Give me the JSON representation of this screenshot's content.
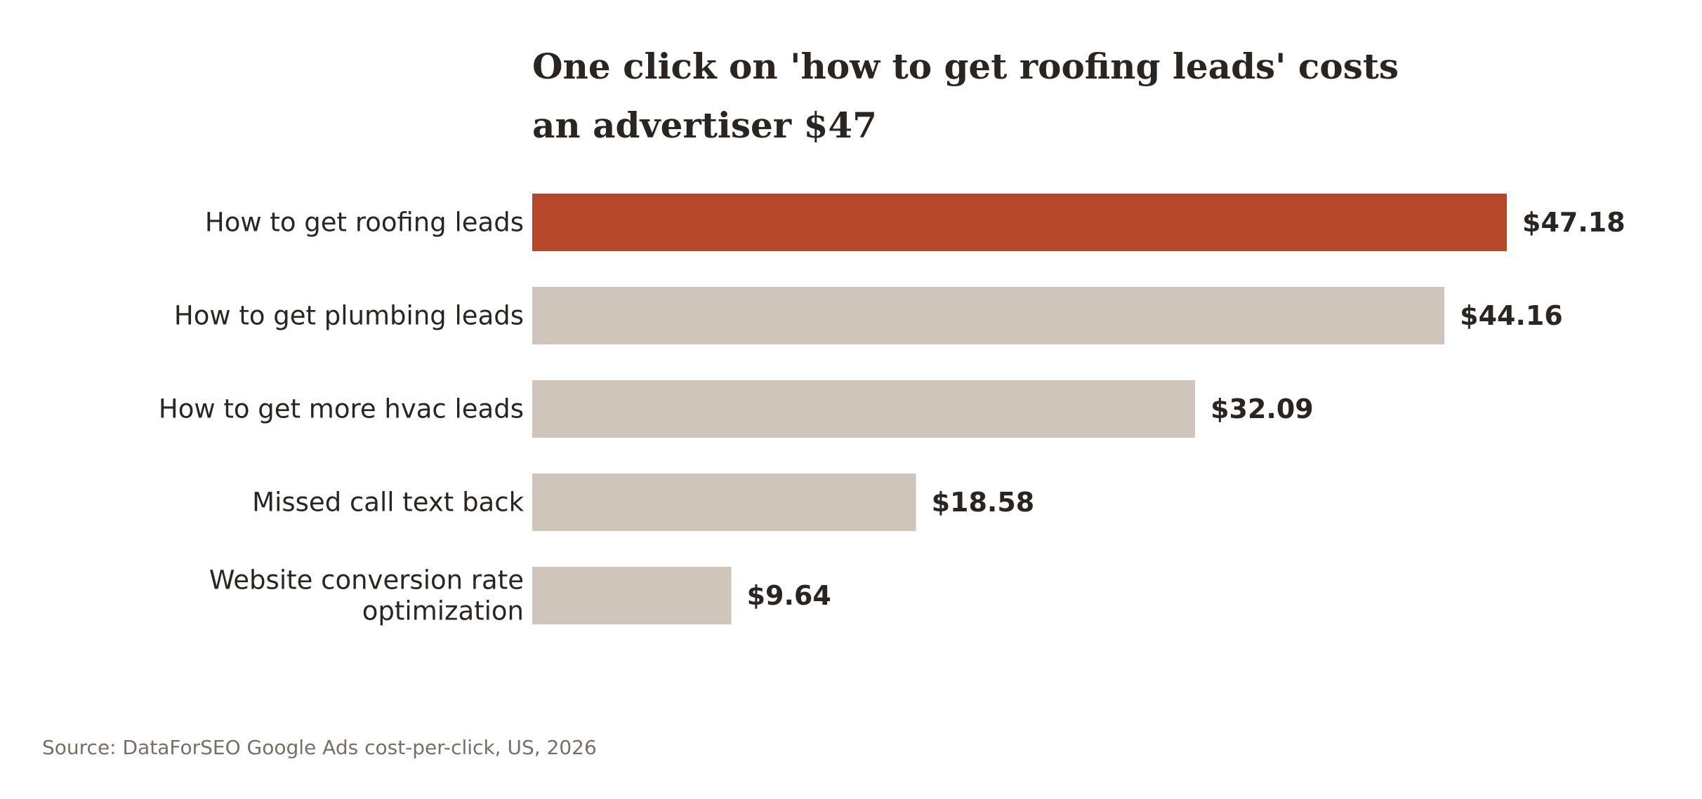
{
  "chart_data": {
    "type": "bar",
    "orientation": "horizontal",
    "title": "One click on 'how to get roofing leads' costs an advertiser $47",
    "title_lines": [
      "One click on 'how to get roofing leads' costs",
      "an advertiser $47"
    ],
    "categories": [
      "How to get roofing leads",
      "How to get plumbing leads",
      "How to get more hvac leads",
      "Missed call text back",
      "Website conversion rate optimization"
    ],
    "category_lines": [
      [
        "How to get roofing leads"
      ],
      [
        "How to get plumbing leads"
      ],
      [
        "How to get more hvac leads"
      ],
      [
        "Missed call text back"
      ],
      [
        "Website conversion rate",
        "optimization"
      ]
    ],
    "values": [
      47.18,
      44.16,
      32.09,
      18.58,
      9.64
    ],
    "value_labels": [
      "$47.18",
      "$44.16",
      "$32.09",
      "$18.58",
      "$9.64"
    ],
    "highlight_index": 0,
    "xlim": [
      0,
      47.18
    ],
    "xlabel": "",
    "ylabel": "",
    "grid": false,
    "legend": "none",
    "colors": {
      "highlight": "#b5482a",
      "default": "#cfc5bb",
      "text": "#2a2520",
      "source": "#7a6e64"
    },
    "source": "Source: DataForSEO Google Ads cost-per-click, US, 2026"
  }
}
